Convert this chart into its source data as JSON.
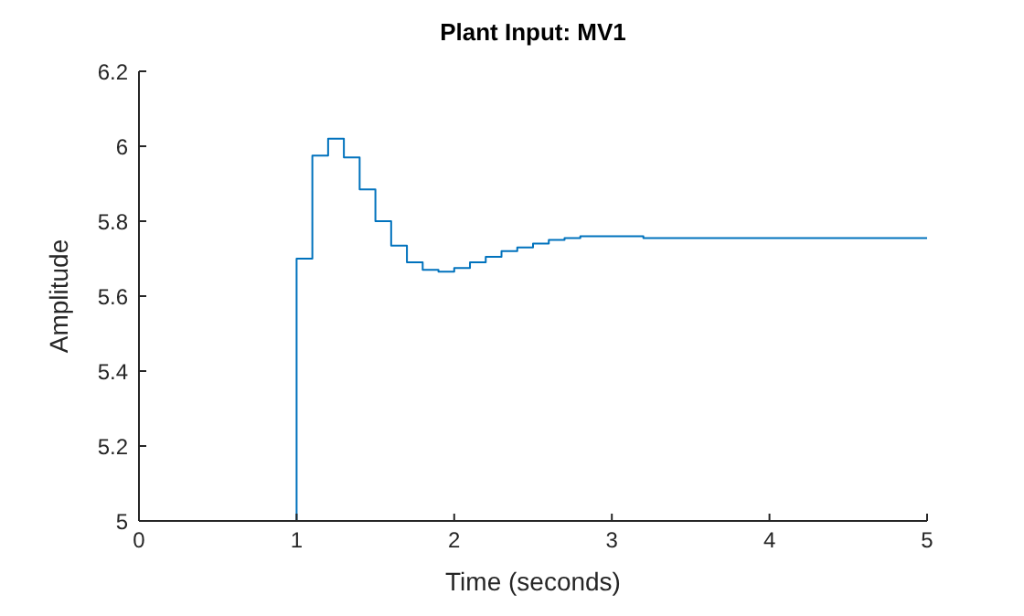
{
  "chart_data": {
    "type": "step",
    "title": "Plant Input: MV1",
    "xlabel": "Time (seconds)",
    "ylabel": "Amplitude",
    "x": [
      0,
      1,
      1.1,
      1.2,
      1.3,
      1.4,
      1.5,
      1.6,
      1.7,
      1.8,
      1.9,
      2,
      2.1,
      2.2,
      2.3,
      2.4,
      2.5,
      2.6,
      2.7,
      2.8,
      3.2,
      5
    ],
    "series": [
      {
        "color": "#0072bd",
        "values": [
          5,
          5.7,
          5.975,
          6.02,
          5.97,
          5.885,
          5.8,
          5.735,
          5.69,
          5.67,
          5.665,
          5.675,
          5.69,
          5.705,
          5.72,
          5.73,
          5.74,
          5.75,
          5.755,
          5.76,
          5.755,
          5.755
        ]
      }
    ],
    "xlim": [
      0,
      5
    ],
    "xticks": [
      0,
      1,
      2,
      3,
      4,
      5
    ],
    "ylim": [
      5,
      6.2
    ],
    "yticks": [
      5,
      5.2,
      5.4,
      5.6,
      5.8,
      6,
      6.2
    ],
    "grid": false,
    "legend": false
  }
}
